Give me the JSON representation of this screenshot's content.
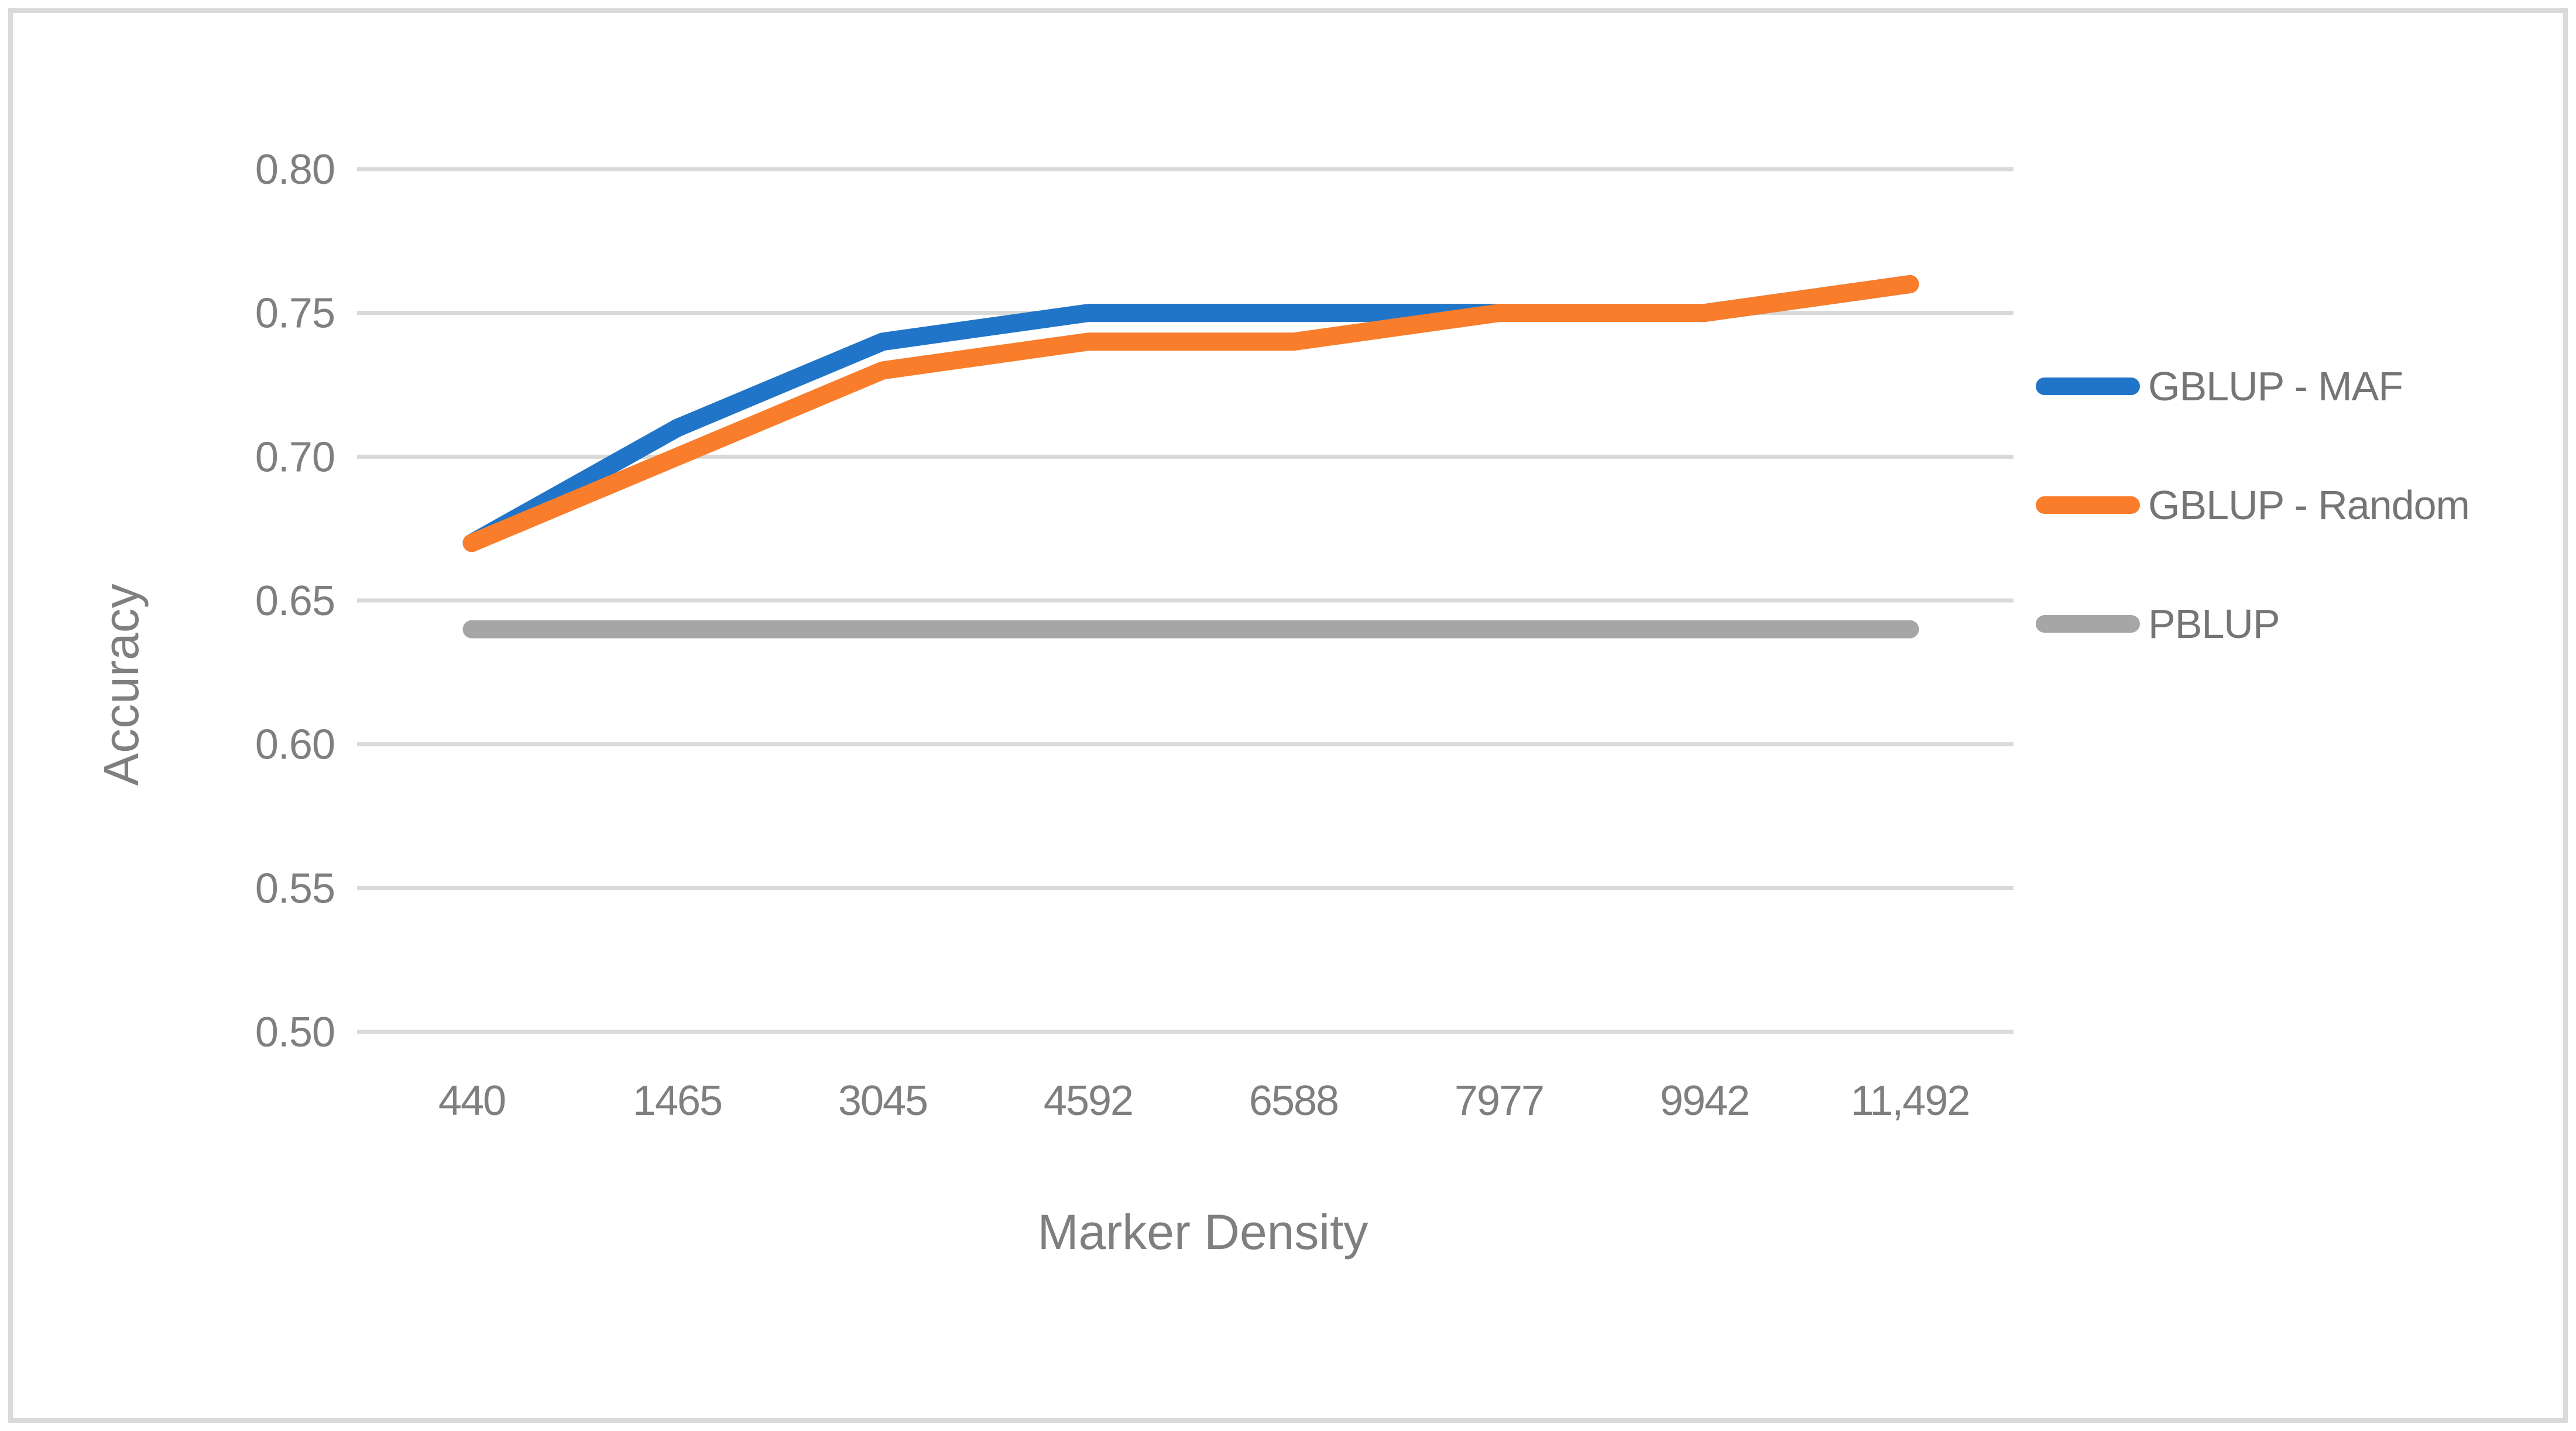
{
  "figure": {
    "background": "#FFFFFF",
    "frame_border_color": "#DADADA"
  },
  "chart_data": {
    "type": "line",
    "title": "",
    "xlabel": "Marker Density",
    "ylabel": "Accuracy",
    "categories": [
      "440",
      "1465",
      "3045",
      "4592",
      "6588",
      "7977",
      "9942",
      "11,492"
    ],
    "series": [
      {
        "name": "GBLUP - MAF",
        "color": "#2175C8",
        "values": [
          0.67,
          0.71,
          0.74,
          0.75,
          0.75,
          0.75,
          0.75,
          0.76
        ]
      },
      {
        "name": "GBLUP - Random",
        "color": "#F97D2B",
        "values": [
          0.67,
          0.7,
          0.73,
          0.74,
          0.74,
          0.75,
          0.75,
          0.76
        ]
      },
      {
        "name": "PBLUP",
        "color": "#A6A6A6",
        "values": [
          0.64,
          0.64,
          0.64,
          0.64,
          0.64,
          0.64,
          0.64,
          0.64
        ]
      }
    ],
    "ylim": [
      0.5,
      0.8
    ],
    "ytick_labels": [
      "0.80",
      "0.75",
      "0.70",
      "0.65",
      "0.60",
      "0.55",
      "0.50"
    ],
    "grid": "horizontal",
    "legend_position": "right",
    "colors": {
      "gridline": "#D9D9D9",
      "tick_text": "#7F7F7F",
      "axis_title_text": "#7F7F7F",
      "legend_text": "#757575"
    }
  }
}
